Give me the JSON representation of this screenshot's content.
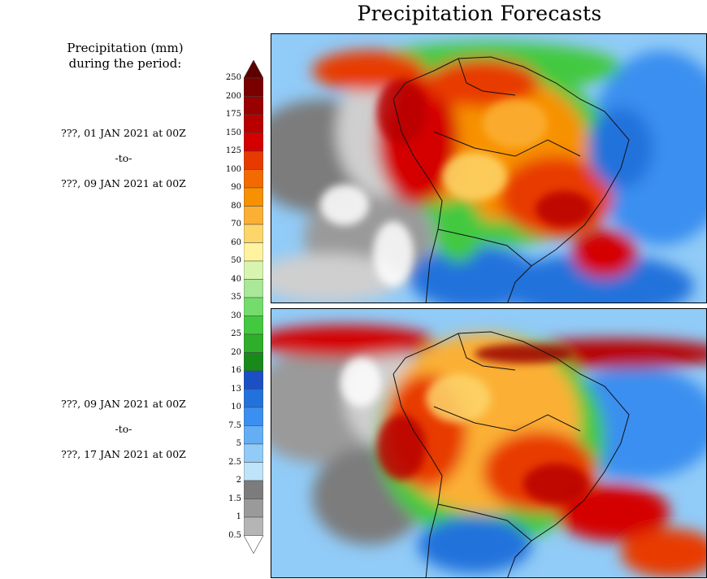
{
  "title": "Precipitation Forecasts",
  "legend": {
    "heading_line1": "Precipitation (mm)",
    "heading_line2": "during the period:",
    "ticks": [
      "250",
      "200",
      "175",
      "150",
      "125",
      "100",
      "90",
      "80",
      "70",
      "60",
      "50",
      "40",
      "35",
      "30",
      "25",
      "20",
      "16",
      "13",
      "10",
      "7.5",
      "5",
      "2.5",
      "2",
      "1.5",
      "1",
      "0.5"
    ],
    "colors": [
      "#5c0000",
      "#7a0000",
      "#990000",
      "#b80000",
      "#d40000",
      "#e83a00",
      "#f26a00",
      "#f79100",
      "#fbb035",
      "#fdd66a",
      "#fff3a0",
      "#d8f5b0",
      "#a8e896",
      "#74dc6c",
      "#43c93f",
      "#2eae2a",
      "#188a1a",
      "#1b4fc4",
      "#2372dc",
      "#3b8ff0",
      "#63aef5",
      "#91cbf7",
      "#bfe3f8",
      "#7c7c7c",
      "#9a9a9a",
      "#b5b5b5",
      "#cfcfcf"
    ]
  },
  "periods": [
    {
      "start": "???, 01 JAN 2021 at 00Z",
      "separator": "-to-",
      "end": "???, 09 JAN 2021 at 00Z"
    },
    {
      "start": "???, 09 JAN 2021 at 00Z",
      "separator": "-to-",
      "end": "???, 17 JAN 2021 at 00Z"
    }
  ]
}
